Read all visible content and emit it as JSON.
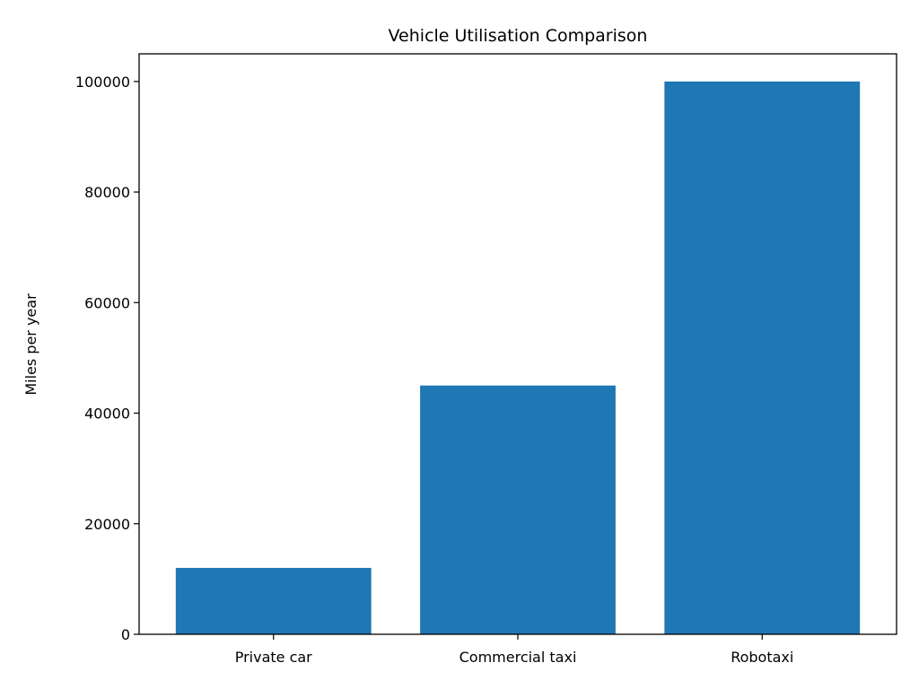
{
  "chart_data": {
    "type": "bar",
    "title": "Vehicle Utilisation Comparison",
    "xlabel": "",
    "ylabel": "Miles per year",
    "categories": [
      "Private car",
      "Commercial taxi",
      "Robotaxi"
    ],
    "values": [
      12000,
      45000,
      100000
    ],
    "ylim": [
      0,
      105000
    ],
    "yticks": [
      "0",
      "20000",
      "40000",
      "60000",
      "80000",
      "100000"
    ],
    "grid": false,
    "bar_color": "#1f77b4"
  }
}
